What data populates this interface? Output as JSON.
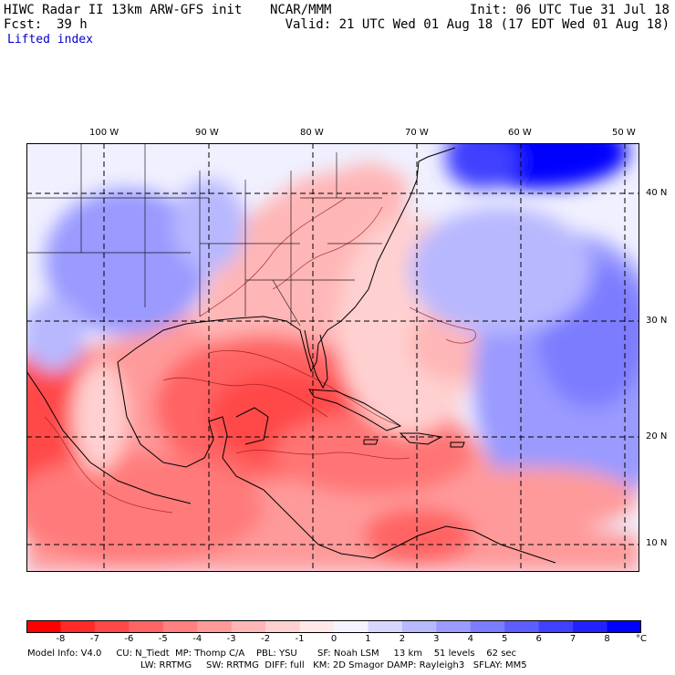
{
  "header": {
    "title_left": "HIWC Radar II 13km ARW-GFS init",
    "fcst_label": "Fcst:",
    "fcst_value": "39 h",
    "field_name": "Lifted index",
    "center": "NCAR/MMM",
    "init": "Init: 06 UTC Tue 31 Jul 18",
    "valid": "Valid: 21 UTC Wed 01 Aug 18 (17 EDT Wed 01 Aug 18)"
  },
  "map": {
    "lon_labels": [
      "100 W",
      "90 W",
      "80 W",
      "70 W",
      "60 W",
      "50 W"
    ],
    "lat_labels": [
      "40 N",
      "30 N",
      "20 N",
      "10 N"
    ]
  },
  "colorbar": {
    "unit": "°C",
    "labels": [
      "-8",
      "-7",
      "-6",
      "-5",
      "-4",
      "-3",
      "-2",
      "-1",
      "0",
      "1",
      "2",
      "3",
      "4",
      "5",
      "6",
      "7",
      "8"
    ],
    "colors": [
      "#ff0000",
      "#ff2a2a",
      "#ff4848",
      "#ff6464",
      "#ff8080",
      "#ff9a9a",
      "#ffb6b6",
      "#ffd0d0",
      "#ffe8e8",
      "#f4f4ff",
      "#d6d6ff",
      "#b8b8ff",
      "#9a9aff",
      "#7c7cff",
      "#5e5eff",
      "#4040ff",
      "#2222ff",
      "#0000ff"
    ]
  },
  "footer": {
    "line1": "Model Info: V4.0     CU: N_Tiedt  MP: Thomp C/A    PBL: YSU       SF: Noah LSM     13 km    51 levels    62 sec",
    "line2": "LW: RRTMG     SW: RRTMG  DIFF: full   KM: 2D Smagor DAMP: Rayleigh3   SFLAY: MM5"
  }
}
